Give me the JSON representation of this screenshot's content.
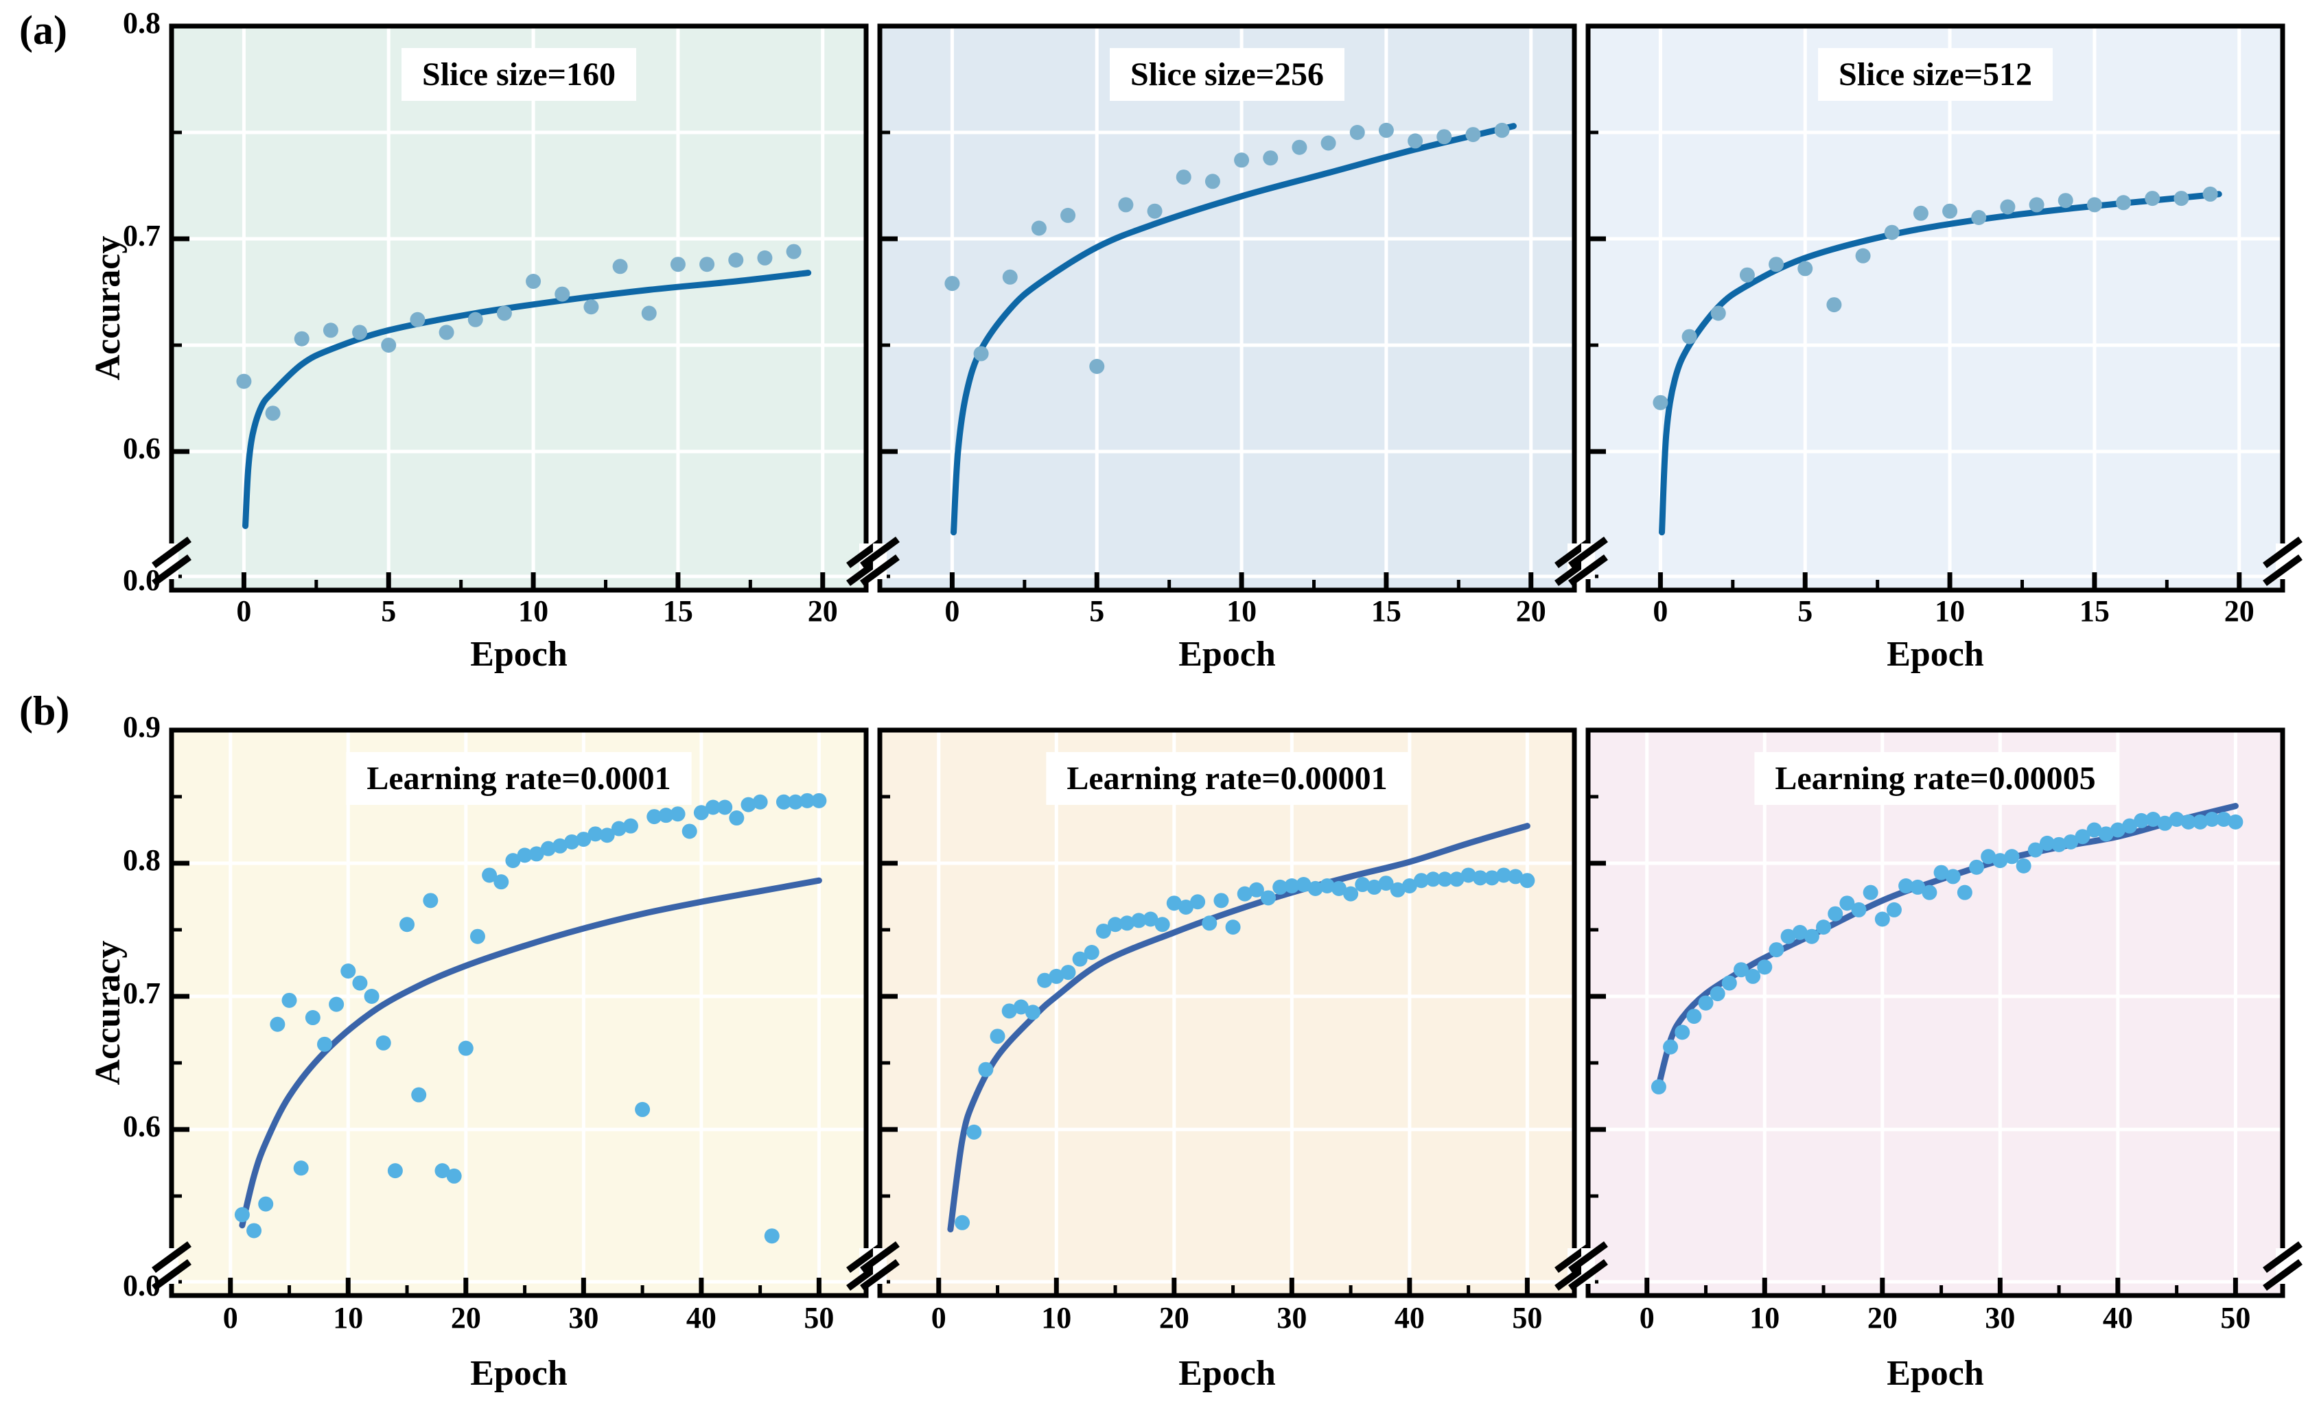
{
  "figure": {
    "panel_labels": [
      "(a)",
      "(b)"
    ],
    "ylabel": "Accuracy",
    "xlabel": "Epoch",
    "zero_label": "0.0",
    "colors": {
      "scatter_top": "#7bafcc",
      "curve_top": "#0e67a6",
      "scatter_bottom": "#54b1e3",
      "curve_bottom": "#3a64a9",
      "axis": "#000000",
      "grid": "#ffffff",
      "title_bg": "#ffffff",
      "text": "#000000"
    }
  },
  "chart_data": [
    {
      "type": "scatter",
      "id": "slice-160",
      "row": "a",
      "title": "Slice size=160",
      "bg": "#e4f1ec",
      "xlabel": "Epoch",
      "x": [
        0,
        1,
        2,
        3,
        4,
        5,
        6,
        7,
        8,
        9,
        10,
        11,
        12,
        13,
        14,
        15,
        16,
        17,
        18,
        19
      ],
      "y": [
        0.633,
        0.618,
        0.653,
        0.657,
        0.656,
        0.65,
        0.662,
        0.656,
        0.662,
        0.665,
        0.68,
        0.674,
        0.668,
        0.687,
        0.665,
        0.688,
        0.688,
        0.69,
        0.691,
        0.694
      ],
      "curve": [
        [
          0.05,
          0.565
        ],
        [
          0.15,
          0.592
        ],
        [
          0.3,
          0.608
        ],
        [
          0.6,
          0.621
        ],
        [
          1,
          0.628
        ],
        [
          2,
          0.641
        ],
        [
          3,
          0.648
        ],
        [
          5,
          0.657
        ],
        [
          8,
          0.665
        ],
        [
          11,
          0.671
        ],
        [
          14,
          0.676
        ],
        [
          17,
          0.68
        ],
        [
          19.5,
          0.684
        ]
      ]
    },
    {
      "type": "scatter",
      "id": "slice-256",
      "row": "a",
      "title": "Slice size=256",
      "bg": "#dfe9f2",
      "xlabel": "Epoch",
      "x": [
        0,
        1,
        2,
        3,
        4,
        5,
        6,
        7,
        8,
        9,
        10,
        11,
        12,
        13,
        14,
        15,
        16,
        17,
        18,
        19
      ],
      "y": [
        0.679,
        0.646,
        0.682,
        0.705,
        0.711,
        0.64,
        0.716,
        0.713,
        0.729,
        0.727,
        0.737,
        0.738,
        0.743,
        0.745,
        0.75,
        0.751,
        0.746,
        0.748,
        0.749,
        0.751
      ],
      "curve": [
        [
          0.05,
          0.562
        ],
        [
          0.2,
          0.6
        ],
        [
          0.5,
          0.628
        ],
        [
          1,
          0.648
        ],
        [
          2,
          0.667
        ],
        [
          3,
          0.679
        ],
        [
          5,
          0.696
        ],
        [
          7,
          0.707
        ],
        [
          10,
          0.72
        ],
        [
          13,
          0.731
        ],
        [
          16,
          0.742
        ],
        [
          19.4,
          0.753
        ]
      ]
    },
    {
      "type": "scatter",
      "id": "slice-512",
      "row": "a",
      "title": "Slice size=512",
      "bg": "#eaf1f9",
      "xlabel": "Epoch",
      "x": [
        0,
        1,
        2,
        3,
        4,
        5,
        6,
        7,
        8,
        9,
        10,
        11,
        12,
        13,
        14,
        15,
        16,
        17,
        18,
        19
      ],
      "y": [
        0.623,
        0.654,
        0.665,
        0.683,
        0.688,
        0.686,
        0.669,
        0.692,
        0.703,
        0.712,
        0.713,
        0.71,
        0.715,
        0.716,
        0.718,
        0.716,
        0.717,
        0.719,
        0.719,
        0.721
      ],
      "curve": [
        [
          0.05,
          0.562
        ],
        [
          0.2,
          0.608
        ],
        [
          0.5,
          0.634
        ],
        [
          1,
          0.65
        ],
        [
          2,
          0.668
        ],
        [
          3,
          0.678
        ],
        [
          5,
          0.691
        ],
        [
          8,
          0.702
        ],
        [
          11,
          0.709
        ],
        [
          14,
          0.714
        ],
        [
          17,
          0.718
        ],
        [
          19.3,
          0.721
        ]
      ]
    },
    {
      "type": "scatter",
      "id": "lr-0001",
      "row": "b",
      "title": "Learning rate=0.0001",
      "bg": "#fcf8e6",
      "xlabel": "Epoch",
      "x": [
        1,
        2,
        3,
        4,
        5,
        6,
        7,
        8,
        9,
        10,
        11,
        12,
        13,
        14,
        15,
        16,
        17,
        18,
        19,
        20,
        21,
        22,
        23,
        24,
        25,
        26,
        27,
        28,
        29,
        30,
        31,
        32,
        33,
        34,
        35,
        36,
        37,
        38,
        39,
        40,
        41,
        42,
        43,
        44,
        45,
        46,
        47,
        48,
        49,
        50
      ],
      "y": [
        0.536,
        0.524,
        0.544,
        0.679,
        0.697,
        0.571,
        0.684,
        0.664,
        0.694,
        0.719,
        0.71,
        0.7,
        0.665,
        0.569,
        0.754,
        0.626,
        0.772,
        0.569,
        0.565,
        0.661,
        0.745,
        0.791,
        0.786,
        0.802,
        0.806,
        0.807,
        0.811,
        0.813,
        0.816,
        0.818,
        0.822,
        0.821,
        0.826,
        0.828,
        0.615,
        0.835,
        0.836,
        0.837,
        0.824,
        0.838,
        0.842,
        0.842,
        0.834,
        0.844,
        0.846,
        0.52,
        0.846,
        0.846,
        0.847,
        0.847
      ],
      "curve": [
        [
          1,
          0.528
        ],
        [
          2,
          0.565
        ],
        [
          3,
          0.59
        ],
        [
          5,
          0.625
        ],
        [
          8,
          0.658
        ],
        [
          12,
          0.688
        ],
        [
          16,
          0.708
        ],
        [
          20,
          0.723
        ],
        [
          25,
          0.738
        ],
        [
          30,
          0.751
        ],
        [
          35,
          0.762
        ],
        [
          40,
          0.771
        ],
        [
          45,
          0.779
        ],
        [
          50,
          0.787
        ]
      ]
    },
    {
      "type": "scatter",
      "id": "lr-00001",
      "row": "b",
      "title": "Learning rate=0.00001",
      "bg": "#fbf2e3",
      "xlabel": "Epoch",
      "x": [
        2,
        3,
        4,
        5,
        6,
        7,
        8,
        9,
        10,
        11,
        12,
        13,
        14,
        15,
        16,
        17,
        18,
        19,
        20,
        21,
        22,
        23,
        24,
        25,
        26,
        27,
        28,
        29,
        30,
        31,
        32,
        33,
        34,
        35,
        36,
        37,
        38,
        39,
        40,
        41,
        42,
        43,
        44,
        45,
        46,
        47,
        48,
        49,
        50
      ],
      "y": [
        0.53,
        0.598,
        0.645,
        0.67,
        0.689,
        0.692,
        0.688,
        0.712,
        0.715,
        0.718,
        0.728,
        0.733,
        0.749,
        0.754,
        0.755,
        0.757,
        0.758,
        0.754,
        0.77,
        0.767,
        0.771,
        0.755,
        0.772,
        0.752,
        0.777,
        0.78,
        0.774,
        0.782,
        0.783,
        0.784,
        0.781,
        0.783,
        0.781,
        0.777,
        0.784,
        0.782,
        0.785,
        0.78,
        0.783,
        0.787,
        0.788,
        0.788,
        0.788,
        0.791,
        0.789,
        0.789,
        0.791,
        0.79,
        0.787
      ],
      "curve": [
        [
          1,
          0.525
        ],
        [
          2,
          0.592
        ],
        [
          3,
          0.622
        ],
        [
          5,
          0.655
        ],
        [
          8,
          0.684
        ],
        [
          10,
          0.7
        ],
        [
          14,
          0.726
        ],
        [
          20,
          0.748
        ],
        [
          25,
          0.764
        ],
        [
          30,
          0.778
        ],
        [
          35,
          0.79
        ],
        [
          40,
          0.801
        ],
        [
          45,
          0.815
        ],
        [
          50,
          0.828
        ]
      ]
    },
    {
      "type": "scatter",
      "id": "lr-00005",
      "row": "b",
      "title": "Learning rate=0.00005",
      "bg": "#f8edf3",
      "xlabel": "Epoch",
      "x": [
        1,
        2,
        3,
        4,
        5,
        6,
        7,
        8,
        9,
        10,
        11,
        12,
        13,
        14,
        15,
        16,
        17,
        18,
        19,
        20,
        21,
        22,
        23,
        24,
        25,
        26,
        27,
        28,
        29,
        30,
        31,
        32,
        33,
        34,
        35,
        36,
        37,
        38,
        39,
        40,
        41,
        42,
        43,
        44,
        45,
        46,
        47,
        48,
        49,
        50
      ],
      "y": [
        0.632,
        0.662,
        0.673,
        0.685,
        0.695,
        0.702,
        0.71,
        0.72,
        0.715,
        0.722,
        0.735,
        0.745,
        0.748,
        0.745,
        0.752,
        0.762,
        0.77,
        0.765,
        0.778,
        0.758,
        0.765,
        0.783,
        0.782,
        0.778,
        0.793,
        0.79,
        0.778,
        0.797,
        0.805,
        0.802,
        0.805,
        0.798,
        0.81,
        0.815,
        0.814,
        0.816,
        0.82,
        0.825,
        0.822,
        0.825,
        0.828,
        0.832,
        0.833,
        0.83,
        0.833,
        0.831,
        0.831,
        0.833,
        0.833,
        0.831
      ],
      "curve": [
        [
          1,
          0.633
        ],
        [
          2,
          0.667
        ],
        [
          3,
          0.684
        ],
        [
          5,
          0.702
        ],
        [
          8,
          0.719
        ],
        [
          10,
          0.729
        ],
        [
          14,
          0.746
        ],
        [
          20,
          0.772
        ],
        [
          25,
          0.788
        ],
        [
          30,
          0.802
        ],
        [
          35,
          0.812
        ],
        [
          40,
          0.82
        ],
        [
          45,
          0.832
        ],
        [
          50,
          0.843
        ]
      ]
    }
  ],
  "axes": {
    "row_a": {
      "y_tick_labels": [
        "0.8",
        "0.7",
        "0.6"
      ],
      "y_tick_values": [
        0.8,
        0.7,
        0.6
      ],
      "y_minor_values": [
        0.75,
        0.65
      ],
      "grid_values": [
        0.75,
        0.7,
        0.65,
        0.6
      ],
      "x_tick_values": [
        0,
        5,
        10,
        15,
        20
      ],
      "x_minor_step": 2.5,
      "xlim": [
        -2.5,
        21.5
      ],
      "broken_axis": true
    },
    "row_b": {
      "y_tick_labels": [
        "0.9",
        "0.8",
        "0.7",
        "0.6"
      ],
      "y_tick_values": [
        0.9,
        0.8,
        0.7,
        0.6
      ],
      "y_minor_values": [
        0.85,
        0.75,
        0.65,
        0.55
      ],
      "grid_values": [
        0.8,
        0.7,
        0.6
      ],
      "x_tick_values": [
        0,
        10,
        20,
        30,
        40,
        50
      ],
      "x_minor_step": 5,
      "xlim": [
        -5,
        54
      ],
      "broken_axis": true
    }
  }
}
